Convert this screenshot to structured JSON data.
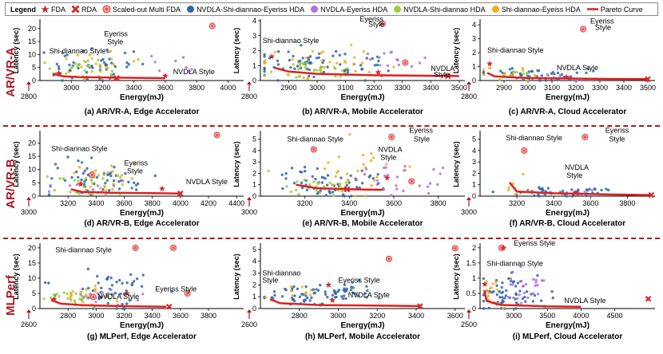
{
  "legend": {
    "title": "Legend",
    "items": [
      {
        "label": "FDA",
        "icon": "red-star-icon",
        "color": "#d42a2a"
      },
      {
        "label": "RDA",
        "icon": "red-x-icon",
        "color": "#d42a2a"
      },
      {
        "label": "Scaled-out Multi FDA",
        "icon": "red-target-icon",
        "color": "#e05050"
      },
      {
        "label": "NVDLA-Shi-diannao-Eyeriss HDA",
        "icon": "blue-dot-icon",
        "color": "#2f66a8"
      },
      {
        "label": "NVDLA-Eyeriss HDA",
        "icon": "violet-dot-icon",
        "color": "#b070e0"
      },
      {
        "label": "NVDLA-Shi-diannao HDA",
        "icon": "green-dot-icon",
        "color": "#9ad03a"
      },
      {
        "label": "Shi-diannao-Eyeiss HDA",
        "icon": "orange-dot-icon",
        "color": "#f0b020"
      },
      {
        "label": "Pareto Curve",
        "icon": "red-line-icon",
        "color": "#e02020"
      }
    ]
  },
  "rows": [
    {
      "label": "AR/VR-A",
      "color": "#b01520"
    },
    {
      "label": "AR/VR-B",
      "color": "#b01520"
    },
    {
      "label": "MLPerf",
      "color": "#b01520"
    }
  ],
  "chart_data": [
    {
      "type": "scatter",
      "title": "(a) AR/VR-A, Edge Accelerator",
      "xlabel": "Energy(mJ)",
      "ylabel": "Latency (sec)",
      "xlim": [
        2800,
        4100
      ],
      "ylim": [
        0,
        23
      ],
      "xticks": [
        3000,
        3200,
        3400,
        3600,
        3800,
        4000
      ],
      "yticks": [
        0,
        5,
        10,
        15,
        20
      ],
      "corner": "2800",
      "clusters": [
        {
          "s": "blue",
          "cx": 3130,
          "cy": 6,
          "sx": 130,
          "sy": 3.5,
          "n": 55
        },
        {
          "s": "green",
          "cx": 3080,
          "cy": 4.5,
          "sx": 100,
          "sy": 2.5,
          "n": 25
        },
        {
          "s": "orange",
          "cx": 3150,
          "cy": 6,
          "sx": 150,
          "sy": 3,
          "n": 20
        },
        {
          "s": "violet",
          "cx": 3650,
          "cy": 6,
          "sx": 60,
          "sy": 2,
          "n": 8
        }
      ],
      "pareto": [
        [
          2880,
          2.6
        ],
        [
          2950,
          1.6
        ],
        [
          3050,
          1.3
        ],
        [
          3300,
          1.1
        ],
        [
          3600,
          0.9
        ]
      ],
      "fda": [
        [
          3600,
          1.8
        ],
        [
          2920,
          2.8
        ]
      ],
      "rda": [
        [
          3290,
          0.9
        ]
      ],
      "multi": [
        [
          3900,
          21
        ]
      ],
      "annotations": [
        {
          "text": "Shi-diannao Style",
          "x": 2860,
          "y": 10.5
        },
        {
          "text": "Eyeriss",
          "x": 3210,
          "y": 17
        },
        {
          "text": "Style",
          "x": 3230,
          "y": 14
        },
        {
          "text": "NVDLA Style",
          "x": 3650,
          "y": 2.5
        }
      ]
    },
    {
      "type": "scatter",
      "title": "(b) AR/VR-A, Mobile Accelerator",
      "xlabel": "Energy(mJ)",
      "ylabel": "Latency (sec)",
      "xlim": [
        2800,
        3520
      ],
      "ylim": [
        0,
        4
      ],
      "xticks": [
        2900,
        3000,
        3100,
        3200,
        3300,
        3400,
        3500
      ],
      "yticks": [
        0,
        1,
        2,
        3,
        4
      ],
      "corner": "2800",
      "clusters": [
        {
          "s": "blue",
          "cx": 3000,
          "cy": 1.1,
          "sx": 120,
          "sy": 0.5,
          "n": 70
        },
        {
          "s": "green",
          "cx": 2960,
          "cy": 0.8,
          "sx": 90,
          "sy": 0.35,
          "n": 35
        },
        {
          "s": "orange",
          "cx": 3020,
          "cy": 1.2,
          "sx": 120,
          "sy": 0.5,
          "n": 25
        },
        {
          "s": "violet",
          "cx": 3260,
          "cy": 1.3,
          "sx": 60,
          "sy": 0.5,
          "n": 15
        }
      ],
      "pareto": [
        [
          2850,
          0.85
        ],
        [
          2900,
          0.6
        ],
        [
          3000,
          0.45
        ],
        [
          3200,
          0.35
        ],
        [
          3500,
          0.3
        ]
      ],
      "fda": [
        [
          2840,
          1.6
        ],
        [
          3215,
          0.55
        ]
      ],
      "rda": [
        [
          3460,
          0.3
        ]
      ],
      "multi": [
        [
          3230,
          3.8
        ],
        [
          3310,
          1.2
        ]
      ],
      "annotations": [
        {
          "text": "Eyeriss",
          "x": 3150,
          "y": 3.95
        },
        {
          "text": "Style",
          "x": 3180,
          "y": 3.6
        },
        {
          "text": "Shi-diannao Style",
          "x": 2808,
          "y": 2.5
        },
        {
          "text": "NVDLA",
          "x": 3400,
          "y": 0.65
        },
        {
          "text": "Style",
          "x": 3410,
          "y": 0.25
        }
      ]
    },
    {
      "type": "scatter",
      "title": "(c) AR/VR-A, Cloud Accelerator",
      "xlabel": "Energy(mJ)",
      "ylabel": "Latency (sec)",
      "xlim": [
        2800,
        3530
      ],
      "ylim": [
        0,
        4.3
      ],
      "xticks": [
        2900,
        3000,
        3100,
        3200,
        3300,
        3400,
        3500
      ],
      "yticks": [
        0,
        1,
        2,
        3,
        4
      ],
      "corner": "2800",
      "clusters": [
        {
          "s": "blue",
          "cx": 3050,
          "cy": 0.45,
          "sx": 110,
          "sy": 0.25,
          "n": 45
        },
        {
          "s": "green",
          "cx": 2960,
          "cy": 0.35,
          "sx": 70,
          "sy": 0.2,
          "n": 15
        },
        {
          "s": "orange",
          "cx": 2900,
          "cy": 0.5,
          "sx": 60,
          "sy": 0.3,
          "n": 10
        },
        {
          "s": "violet",
          "cx": 3150,
          "cy": 0.3,
          "sx": 60,
          "sy": 0.15,
          "n": 8
        }
      ],
      "pareto": [
        [
          2830,
          0.55
        ],
        [
          2860,
          0.3
        ],
        [
          3000,
          0.18
        ],
        [
          3300,
          0.12
        ],
        [
          3500,
          0.1
        ]
      ],
      "fda": [
        [
          2840,
          1.2
        ],
        [
          3160,
          0.25
        ]
      ],
      "rda": [
        [
          3500,
          0.1
        ]
      ],
      "multi": [
        [
          3230,
          3.7
        ]
      ],
      "annotations": [
        {
          "text": "Eyeriss",
          "x": 3260,
          "y": 4.1
        },
        {
          "text": "Style",
          "x": 3280,
          "y": 3.65
        },
        {
          "text": "Shi-diannao Style",
          "x": 2830,
          "y": 2.0
        },
        {
          "text": "NVDLA Style",
          "x": 3120,
          "y": 0.75
        }
      ]
    },
    {
      "type": "scatter",
      "title": "(d) AR/VR-B, Edge Accelerator",
      "xlabel": "Energy(mJ)",
      "ylabel": "Latency (sec)",
      "xlim": [
        3000,
        4450
      ],
      "ylim": [
        0,
        24
      ],
      "xticks": [
        3200,
        3400,
        3600,
        3800,
        4000,
        4200,
        4400
      ],
      "yticks": [
        0,
        5,
        10,
        15,
        20
      ],
      "corner": "3000",
      "clusters": [
        {
          "s": "blue",
          "cx": 3420,
          "cy": 6,
          "sx": 160,
          "sy": 3.5,
          "n": 55
        },
        {
          "s": "green",
          "cx": 3380,
          "cy": 4.5,
          "sx": 130,
          "sy": 2.5,
          "n": 30
        },
        {
          "s": "orange",
          "cx": 3450,
          "cy": 5,
          "sx": 160,
          "sy": 3,
          "n": 20
        },
        {
          "s": "violet",
          "cx": 3380,
          "cy": 4,
          "sx": 120,
          "sy": 2,
          "n": 10
        }
      ],
      "pareto": [
        [
          3220,
          2.6
        ],
        [
          3300,
          1.6
        ],
        [
          3500,
          1.3
        ],
        [
          3800,
          1.1
        ],
        [
          4000,
          1.0
        ]
      ],
      "fda": [
        [
          3290,
          4.5
        ],
        [
          3870,
          2.8
        ]
      ],
      "rda": [
        [
          4000,
          1.0
        ]
      ],
      "multi": [
        [
          4260,
          23
        ],
        [
          3370,
          8
        ]
      ],
      "annotations": [
        {
          "text": "Shi-diannao Style",
          "x": 3080,
          "y": 17
        },
        {
          "text": "Eyeriss",
          "x": 3600,
          "y": 11.5
        },
        {
          "text": "Style",
          "x": 3620,
          "y": 8.5
        },
        {
          "text": "NVDLA Style",
          "x": 4040,
          "y": 4.5
        }
      ]
    },
    {
      "type": "scatter",
      "title": "(e) AR/VR-B, Mobile Accelerator",
      "xlabel": "Energy(mJ)",
      "ylabel": "Latency (sec)",
      "xlim": [
        3000,
        3920
      ],
      "ylim": [
        0,
        5.6
      ],
      "xticks": [
        3200,
        3400,
        3600,
        3800
      ],
      "yticks": [
        0,
        1,
        2,
        3,
        4,
        5
      ],
      "corner": "3000",
      "clusters": [
        {
          "s": "blue",
          "cx": 3300,
          "cy": 1.1,
          "sx": 120,
          "sy": 0.6,
          "n": 60
        },
        {
          "s": "green",
          "cx": 3250,
          "cy": 0.9,
          "sx": 90,
          "sy": 0.4,
          "n": 25
        },
        {
          "s": "orange",
          "cx": 3450,
          "cy": 2.2,
          "sx": 150,
          "sy": 1.2,
          "n": 30
        },
        {
          "s": "violet",
          "cx": 3620,
          "cy": 1.6,
          "sx": 90,
          "sy": 0.7,
          "n": 25
        }
      ],
      "pareto": [
        [
          3160,
          1.0
        ],
        [
          3250,
          0.7
        ],
        [
          3400,
          0.6
        ],
        [
          3550,
          0.55
        ]
      ],
      "fda": [
        [
          3570,
          1.6
        ]
      ],
      "rda": [
        [
          3390,
          0.6
        ]
      ],
      "multi": [
        [
          3240,
          4.1
        ],
        [
          3590,
          5.2
        ],
        [
          3680,
          1.3
        ]
      ],
      "annotations": [
        {
          "text": "Shi-diannao Style",
          "x": 3120,
          "y": 4.8
        },
        {
          "text": "Eyeriss",
          "x": 3670,
          "y": 5.55
        },
        {
          "text": "Style",
          "x": 3690,
          "y": 4.8
        },
        {
          "text": "NVDLA",
          "x": 3530,
          "y": 3.9
        },
        {
          "text": "Style",
          "x": 3540,
          "y": 3.2
        }
      ]
    },
    {
      "type": "scatter",
      "title": "(f) AR/VR-B, Cloud Accelerator",
      "xlabel": "Energy(mJ)",
      "ylabel": "Latency (sec)",
      "xlim": [
        3000,
        3950
      ],
      "ylim": [
        0,
        5.6
      ],
      "xticks": [
        3200,
        3400,
        3600,
        3800
      ],
      "yticks": [
        0,
        1,
        2,
        3,
        4,
        5
      ],
      "corner": "3000",
      "clusters": [
        {
          "s": "blue",
          "cx": 3450,
          "cy": 0.35,
          "sx": 150,
          "sy": 0.2,
          "n": 50
        },
        {
          "s": "violet",
          "cx": 3550,
          "cy": 0.3,
          "sx": 60,
          "sy": 0.15,
          "n": 10
        },
        {
          "s": "orange",
          "cx": 3180,
          "cy": 1.0,
          "sx": 30,
          "sy": 0.6,
          "n": 8
        }
      ],
      "pareto": [
        [
          3160,
          1.2
        ],
        [
          3200,
          0.4
        ],
        [
          3400,
          0.25
        ],
        [
          3700,
          0.15
        ],
        [
          3930,
          0.1
        ]
      ],
      "fda": [
        [
          3520,
          0.3
        ]
      ],
      "rda": [
        [
          3930,
          0.1
        ]
      ],
      "multi": [
        [
          3240,
          4.0
        ],
        [
          3570,
          5.2
        ]
      ],
      "annotations": [
        {
          "text": "Shi-diannao Style",
          "x": 3140,
          "y": 4.9
        },
        {
          "text": "Eyeriss",
          "x": 3680,
          "y": 5.55
        },
        {
          "text": "Style",
          "x": 3700,
          "y": 4.8
        },
        {
          "text": "NVDLA",
          "x": 3460,
          "y": 2.3
        },
        {
          "text": "Style",
          "x": 3470,
          "y": 1.6
        }
      ]
    },
    {
      "type": "scatter",
      "title": "(g) MLPerf, Edge Accelerator",
      "xlabel": "Energy(mJ)",
      "ylabel": "Latency (sec)",
      "xlim": [
        2600,
        4050
      ],
      "ylim": [
        0,
        21
      ],
      "xticks": [
        2800,
        3000,
        3200,
        3400,
        3600,
        3800
      ],
      "yticks": [
        0,
        5,
        10,
        15,
        20
      ],
      "corner": "2600",
      "clusters": [
        {
          "s": "blue",
          "cx": 3100,
          "cy": 6,
          "sx": 200,
          "sy": 3,
          "n": 50
        },
        {
          "s": "green",
          "cx": 2850,
          "cy": 3.5,
          "sx": 120,
          "sy": 1.5,
          "n": 25
        },
        {
          "s": "orange",
          "cx": 2900,
          "cy": 4,
          "sx": 150,
          "sy": 2,
          "n": 20
        },
        {
          "s": "violet",
          "cx": 3000,
          "cy": 4,
          "sx": 150,
          "sy": 2,
          "n": 12
        }
      ],
      "pareto": [
        [
          2680,
          2.8
        ],
        [
          2750,
          1.6
        ],
        [
          2900,
          1.1
        ],
        [
          3200,
          0.8
        ],
        [
          3500,
          0.6
        ]
      ],
      "fda": [
        [
          2700,
          3.0
        ],
        [
          3220,
          5.0
        ]
      ],
      "rda": [
        [
          3520,
          0.6
        ]
      ],
      "multi": [
        [
          3550,
          20
        ],
        [
          3280,
          20
        ],
        [
          2980,
          3.8
        ],
        [
          3650,
          5
        ]
      ],
      "annotations": [
        {
          "text": "Shi-diannao Style",
          "x": 2710,
          "y": 18.5
        },
        {
          "text": "Eyeriss Style",
          "x": 3420,
          "y": 5.7
        },
        {
          "text": "NVDLA Style",
          "x": 3010,
          "y": 3.2
        }
      ]
    },
    {
      "type": "scatter",
      "title": "(h) MLPerf, Mobile Accelerator",
      "xlabel": "Energy(mJ)",
      "ylabel": "Latency (sec)",
      "xlim": [
        2600,
        3650
      ],
      "ylim": [
        0,
        5.4
      ],
      "xticks": [
        2800,
        3000,
        3200,
        3400,
        3600
      ],
      "yticks": [
        0,
        1,
        2,
        3,
        4,
        5
      ],
      "corner": "2600",
      "clusters": [
        {
          "s": "blue",
          "cx": 2850,
          "cy": 1.2,
          "sx": 120,
          "sy": 0.45,
          "n": 55
        },
        {
          "s": "blue",
          "cx": 3050,
          "cy": 1.4,
          "sx": 60,
          "sy": 0.4,
          "n": 25
        },
        {
          "s": "orange",
          "cx": 2760,
          "cy": 1.3,
          "sx": 80,
          "sy": 0.5,
          "n": 10
        }
      ],
      "pareto": [
        [
          2650,
          0.8
        ],
        [
          2700,
          0.45
        ],
        [
          2900,
          0.3
        ],
        [
          3200,
          0.25
        ],
        [
          3420,
          0.2
        ]
      ],
      "fda": [
        [
          2950,
          2.0
        ],
        [
          2970,
          0.7
        ]
      ],
      "rda": [
        [
          3420,
          0.2
        ]
      ],
      "multi": [
        [
          3260,
          4.2
        ],
        [
          3600,
          5.1
        ]
      ],
      "annotations": [
        {
          "text": "Shi-diannao",
          "x": 2610,
          "y": 2.8
        },
        {
          "text": "Style",
          "x": 2610,
          "y": 2.2
        },
        {
          "text": "Eyeriss Style",
          "x": 3000,
          "y": 2.2
        },
        {
          "text": "NVDLA Style",
          "x": 3050,
          "y": 0.95
        }
      ]
    },
    {
      "type": "scatter",
      "title": "(i) MLPerf, Cloud Accelerator",
      "xlabel": "Energy(mJ)",
      "ylabel": "Latency (sec)",
      "xlim": [
        2500,
        5100
      ],
      "ylim": [
        0,
        2.1
      ],
      "xticks": [
        3000,
        3500,
        4000,
        4500
      ],
      "yticks": [
        0,
        0.5,
        1,
        1.5,
        2
      ],
      "corner": "2500",
      "clusters": [
        {
          "s": "blue",
          "cx": 2950,
          "cy": 0.45,
          "sx": 250,
          "sy": 0.3,
          "n": 60
        },
        {
          "s": "violet",
          "cx": 3200,
          "cy": 0.7,
          "sx": 120,
          "sy": 0.3,
          "n": 25
        },
        {
          "s": "orange",
          "cx": 2700,
          "cy": 0.4,
          "sx": 80,
          "sy": 0.3,
          "n": 15
        }
      ],
      "pareto": [
        [
          2560,
          0.6
        ],
        [
          2600,
          0.25
        ],
        [
          2800,
          0.12
        ],
        [
          3500,
          0.07
        ],
        [
          4000,
          0.06
        ]
      ],
      "fda": [
        [
          2850,
          2.0
        ],
        [
          2570,
          0.8
        ]
      ],
      "rda": [
        [
          5000,
          0.32
        ]
      ],
      "multi": [
        [
          2820,
          2.0
        ]
      ],
      "annotations": [
        {
          "text": "Eyeriss Style",
          "x": 3000,
          "y": 2.07
        },
        {
          "text": "Shi-diannao Style",
          "x": 2600,
          "y": 1.4
        },
        {
          "text": "NVDLA Style",
          "x": 3750,
          "y": 0.18
        }
      ]
    }
  ]
}
